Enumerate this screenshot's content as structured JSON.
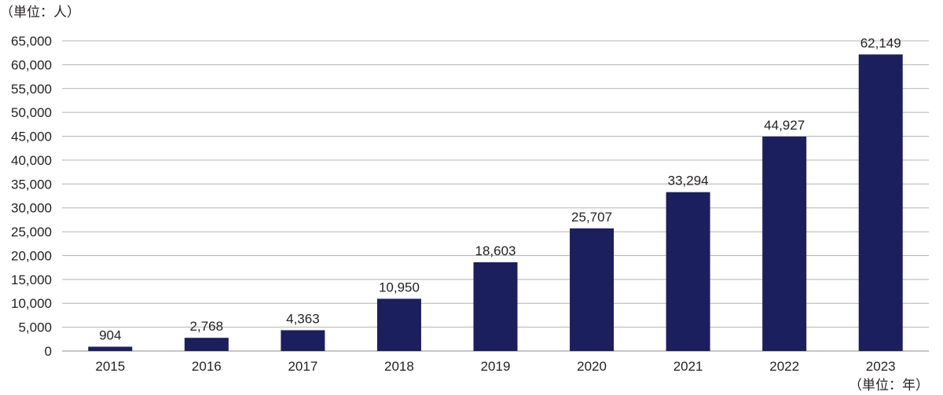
{
  "chart_data": {
    "type": "bar",
    "categories": [
      "2015",
      "2016",
      "2017",
      "2018",
      "2019",
      "2020",
      "2021",
      "2022",
      "2023"
    ],
    "values": [
      904,
      2768,
      4363,
      10950,
      18603,
      25707,
      33294,
      44927,
      62149
    ],
    "data_labels": [
      "904",
      "2,768",
      "4,363",
      "10,950",
      "18,603",
      "25,707",
      "33,294",
      "44,927",
      "62,149"
    ],
    "y_ticks": [
      0,
      5000,
      10000,
      15000,
      20000,
      25000,
      30000,
      35000,
      40000,
      45000,
      50000,
      55000,
      60000,
      65000
    ],
    "y_tick_labels": [
      "0",
      "5,000",
      "10,000",
      "15,000",
      "20,000",
      "25,000",
      "30,000",
      "35,000",
      "40,000",
      "45,000",
      "50,000",
      "55,000",
      "60,000",
      "65,000"
    ],
    "ylim": [
      0,
      65000
    ],
    "y_unit_label": "（単位：人）",
    "x_unit_label": "（単位：年）",
    "grid": true,
    "legend": "none",
    "bar_color": "#1b1f5e",
    "grid_color": "#b3b3b3"
  }
}
